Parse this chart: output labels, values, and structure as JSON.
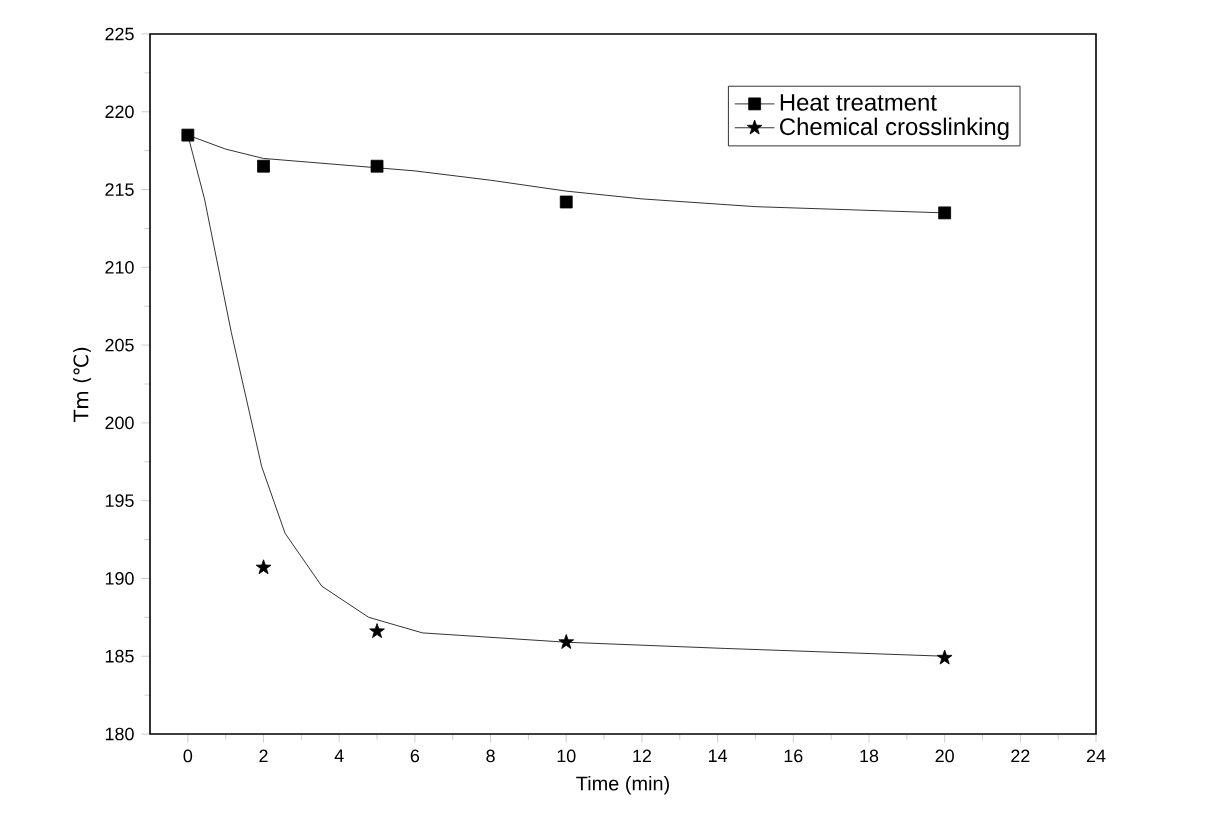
{
  "chart_data": {
    "type": "scatter",
    "xlabel": "Time (min)",
    "ylabel": "Tm (℃)",
    "xlim": [
      -1,
      24
    ],
    "ylim": [
      180,
      225
    ],
    "xticks": [
      0,
      2,
      4,
      6,
      8,
      10,
      12,
      14,
      16,
      18,
      20,
      22,
      24
    ],
    "yticks": [
      180,
      185,
      190,
      195,
      200,
      205,
      210,
      215,
      220,
      225
    ],
    "legend": "top right",
    "grid": false,
    "series": [
      {
        "name": "Heat treatment",
        "marker": "square",
        "color": "#000000",
        "x": [
          0,
          2,
          5,
          10,
          20
        ],
        "values": [
          218.5,
          216.5,
          216.5,
          214.2,
          213.5
        ]
      },
      {
        "name": "Chemical crosslinking",
        "marker": "star",
        "color": "#000000",
        "x": [
          2,
          5,
          10,
          20
        ],
        "values": [
          190.7,
          186.6,
          185.9,
          184.9
        ]
      },
      {
        "type": "line",
        "marker": "none",
        "color": "#000000",
        "x": [
          0,
          1,
          2,
          4,
          6,
          8,
          10,
          12,
          15,
          20
        ],
        "values": [
          218.5,
          217.6,
          217.0,
          216.6,
          216.2,
          215.6,
          214.9,
          214.4,
          213.9,
          213.5
        ]
      },
      {
        "type": "line",
        "marker": "none",
        "color": "#000000",
        "x": [
          0,
          0.44,
          1.15,
          1.95,
          2.57,
          3.54,
          4.78,
          6.2,
          10,
          14.2,
          20
        ],
        "values": [
          218.5,
          214.4,
          205.8,
          197.2,
          192.9,
          189.5,
          187.5,
          186.5,
          185.9,
          185.5,
          185
        ]
      }
    ]
  }
}
